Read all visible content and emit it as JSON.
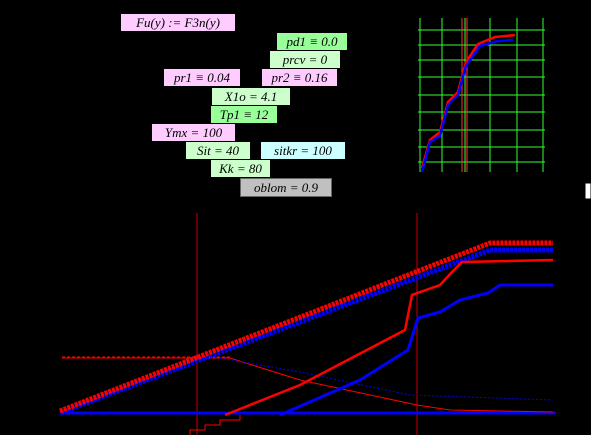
{
  "definition": "Fu(y) := F3n(y)",
  "variables": [
    "pd1 ≡ 0.0",
    "prcv = 0",
    "pr1 ≡ 0.04",
    "pr2 ≡ 0.16",
    "X1o = 4.1",
    "Tp1 ≡ 12",
    "Ymx = 100",
    "Sit = 40",
    "sitkr = 100",
    "Kk = 80",
    "oblom = 0.9"
  ]
}
